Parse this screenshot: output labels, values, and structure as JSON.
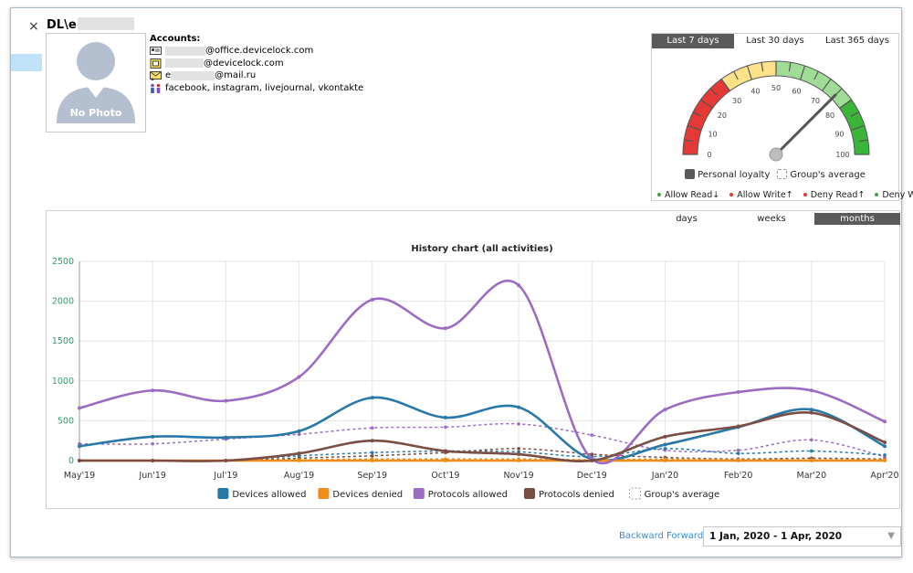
{
  "window": {
    "close_label": "×",
    "user_name": "DL\\e"
  },
  "photo": {
    "label": "No Photo"
  },
  "accounts": {
    "heading": "Accounts:",
    "items": [
      {
        "icon": "id-card-icon",
        "suffix": "@office.devicelock.com"
      },
      {
        "icon": "sim-card-icon",
        "suffix": "@devicelock.com"
      },
      {
        "icon": "mail-icon",
        "prefix": "e",
        "suffix": "@mail.ru"
      },
      {
        "icon": "people-icon",
        "text": "facebook, instagram, livejournal, vkontakte"
      }
    ]
  },
  "loyalty": {
    "periods": [
      "Last 7 days",
      "Last 30 days",
      "Last 365 days"
    ],
    "active_period": 0,
    "gauge": {
      "ticks": [
        "0",
        "10",
        "20",
        "30",
        "40",
        "50",
        "60",
        "70",
        "80",
        "90",
        "100"
      ],
      "value": 75,
      "colors": {
        "red": "#e53935",
        "yellow": "#fde28a",
        "lightgreen": "#9fdd96",
        "green": "#3ab53a"
      }
    },
    "legend": {
      "personal": "Personal loyalty",
      "group": "Group's average"
    },
    "rules": [
      {
        "label": "Allow Read↓",
        "color": "#43a047"
      },
      {
        "label": "Allow Write↑",
        "color": "#e53935"
      },
      {
        "label": "Deny Read↑",
        "color": "#e53935"
      },
      {
        "label": "Deny Write−",
        "color": "#43a047"
      }
    ]
  },
  "chart_tabs": {
    "labels": [
      "days",
      "weeks",
      "months"
    ],
    "active": 2
  },
  "chart_data": {
    "type": "line",
    "title": "History chart (all activities)",
    "categories": [
      "May'19",
      "Jun'19",
      "Jul'19",
      "Aug'19",
      "Sep'19",
      "Oct'19",
      "Nov'19",
      "Dec'19",
      "Jan'20",
      "Feb'20",
      "Mar'20",
      "Apr'20"
    ],
    "ylim": [
      0,
      2500
    ],
    "yticks": [
      "0",
      "500",
      "1000",
      "1500",
      "2000",
      "2500"
    ],
    "grid": true,
    "legend_position": "bottom",
    "series": [
      {
        "name": "Devices allowed",
        "color": "#2878a8",
        "values": [
          180,
          300,
          290,
          370,
          790,
          540,
          670,
          20,
          200,
          420,
          640,
          180
        ]
      },
      {
        "name": "Devices denied",
        "color": "#f08c18",
        "values": [
          0,
          0,
          0,
          0,
          0,
          0,
          0,
          0,
          0,
          0,
          0,
          0
        ]
      },
      {
        "name": "Protocols allowed",
        "color": "#9c6cc4",
        "values": [
          660,
          880,
          750,
          1050,
          2020,
          1660,
          2200,
          20,
          640,
          860,
          880,
          490
        ]
      },
      {
        "name": "Protocols denied",
        "color": "#7a4e44",
        "values": [
          0,
          0,
          0,
          90,
          250,
          120,
          80,
          0,
          300,
          430,
          600,
          230
        ]
      }
    ],
    "group_average": {
      "name": "Group's average",
      "series": [
        {
          "color": "#9c6cc4",
          "values": [
            210,
            210,
            270,
            330,
            410,
            420,
            460,
            320,
            130,
            130,
            260,
            50
          ]
        },
        {
          "color": "#2878a8",
          "values": [
            0,
            0,
            0,
            60,
            100,
            120,
            110,
            50,
            150,
            90,
            120,
            70
          ]
        },
        {
          "color": "#7a4e44",
          "values": [
            0,
            0,
            0,
            30,
            60,
            100,
            150,
            80,
            40,
            20,
            30,
            20
          ]
        },
        {
          "color": "#f08c18",
          "values": [
            0,
            0,
            0,
            10,
            20,
            20,
            20,
            10,
            20,
            10,
            10,
            10
          ]
        }
      ]
    }
  },
  "navigation": {
    "backward": "Backward",
    "forward": "Forward",
    "date_range": "1 Jan, 2020 - 1 Apr, 2020"
  }
}
